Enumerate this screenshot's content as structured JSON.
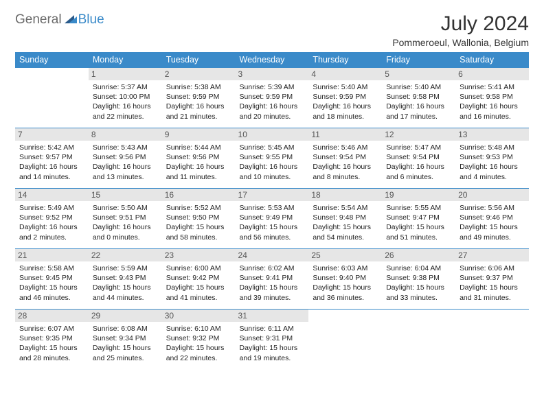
{
  "logo": {
    "text1": "General",
    "text2": "Blue"
  },
  "title": "July 2024",
  "location": "Pommeroeul, Wallonia, Belgium",
  "colors": {
    "header_bg": "#3a8ac9",
    "header_text": "#ffffff",
    "daynum_bg": "#e6e6e6",
    "border": "#3a8ac9",
    "logo_gray": "#6b6b6b",
    "logo_blue": "#3a8ac9",
    "text": "#222222"
  },
  "weekdays": [
    "Sunday",
    "Monday",
    "Tuesday",
    "Wednesday",
    "Thursday",
    "Friday",
    "Saturday"
  ],
  "weeks": [
    [
      null,
      {
        "n": "1",
        "sr": "5:37 AM",
        "ss": "10:00 PM",
        "dl": "16 hours and 22 minutes."
      },
      {
        "n": "2",
        "sr": "5:38 AM",
        "ss": "9:59 PM",
        "dl": "16 hours and 21 minutes."
      },
      {
        "n": "3",
        "sr": "5:39 AM",
        "ss": "9:59 PM",
        "dl": "16 hours and 20 minutes."
      },
      {
        "n": "4",
        "sr": "5:40 AM",
        "ss": "9:59 PM",
        "dl": "16 hours and 18 minutes."
      },
      {
        "n": "5",
        "sr": "5:40 AM",
        "ss": "9:58 PM",
        "dl": "16 hours and 17 minutes."
      },
      {
        "n": "6",
        "sr": "5:41 AM",
        "ss": "9:58 PM",
        "dl": "16 hours and 16 minutes."
      }
    ],
    [
      {
        "n": "7",
        "sr": "5:42 AM",
        "ss": "9:57 PM",
        "dl": "16 hours and 14 minutes."
      },
      {
        "n": "8",
        "sr": "5:43 AM",
        "ss": "9:56 PM",
        "dl": "16 hours and 13 minutes."
      },
      {
        "n": "9",
        "sr": "5:44 AM",
        "ss": "9:56 PM",
        "dl": "16 hours and 11 minutes."
      },
      {
        "n": "10",
        "sr": "5:45 AM",
        "ss": "9:55 PM",
        "dl": "16 hours and 10 minutes."
      },
      {
        "n": "11",
        "sr": "5:46 AM",
        "ss": "9:54 PM",
        "dl": "16 hours and 8 minutes."
      },
      {
        "n": "12",
        "sr": "5:47 AM",
        "ss": "9:54 PM",
        "dl": "16 hours and 6 minutes."
      },
      {
        "n": "13",
        "sr": "5:48 AM",
        "ss": "9:53 PM",
        "dl": "16 hours and 4 minutes."
      }
    ],
    [
      {
        "n": "14",
        "sr": "5:49 AM",
        "ss": "9:52 PM",
        "dl": "16 hours and 2 minutes."
      },
      {
        "n": "15",
        "sr": "5:50 AM",
        "ss": "9:51 PM",
        "dl": "16 hours and 0 minutes."
      },
      {
        "n": "16",
        "sr": "5:52 AM",
        "ss": "9:50 PM",
        "dl": "15 hours and 58 minutes."
      },
      {
        "n": "17",
        "sr": "5:53 AM",
        "ss": "9:49 PM",
        "dl": "15 hours and 56 minutes."
      },
      {
        "n": "18",
        "sr": "5:54 AM",
        "ss": "9:48 PM",
        "dl": "15 hours and 54 minutes."
      },
      {
        "n": "19",
        "sr": "5:55 AM",
        "ss": "9:47 PM",
        "dl": "15 hours and 51 minutes."
      },
      {
        "n": "20",
        "sr": "5:56 AM",
        "ss": "9:46 PM",
        "dl": "15 hours and 49 minutes."
      }
    ],
    [
      {
        "n": "21",
        "sr": "5:58 AM",
        "ss": "9:45 PM",
        "dl": "15 hours and 46 minutes."
      },
      {
        "n": "22",
        "sr": "5:59 AM",
        "ss": "9:43 PM",
        "dl": "15 hours and 44 minutes."
      },
      {
        "n": "23",
        "sr": "6:00 AM",
        "ss": "9:42 PM",
        "dl": "15 hours and 41 minutes."
      },
      {
        "n": "24",
        "sr": "6:02 AM",
        "ss": "9:41 PM",
        "dl": "15 hours and 39 minutes."
      },
      {
        "n": "25",
        "sr": "6:03 AM",
        "ss": "9:40 PM",
        "dl": "15 hours and 36 minutes."
      },
      {
        "n": "26",
        "sr": "6:04 AM",
        "ss": "9:38 PM",
        "dl": "15 hours and 33 minutes."
      },
      {
        "n": "27",
        "sr": "6:06 AM",
        "ss": "9:37 PM",
        "dl": "15 hours and 31 minutes."
      }
    ],
    [
      {
        "n": "28",
        "sr": "6:07 AM",
        "ss": "9:35 PM",
        "dl": "15 hours and 28 minutes."
      },
      {
        "n": "29",
        "sr": "6:08 AM",
        "ss": "9:34 PM",
        "dl": "15 hours and 25 minutes."
      },
      {
        "n": "30",
        "sr": "6:10 AM",
        "ss": "9:32 PM",
        "dl": "15 hours and 22 minutes."
      },
      {
        "n": "31",
        "sr": "6:11 AM",
        "ss": "9:31 PM",
        "dl": "15 hours and 19 minutes."
      },
      null,
      null,
      null
    ]
  ],
  "labels": {
    "sunrise": "Sunrise:",
    "sunset": "Sunset:",
    "daylight": "Daylight:"
  }
}
